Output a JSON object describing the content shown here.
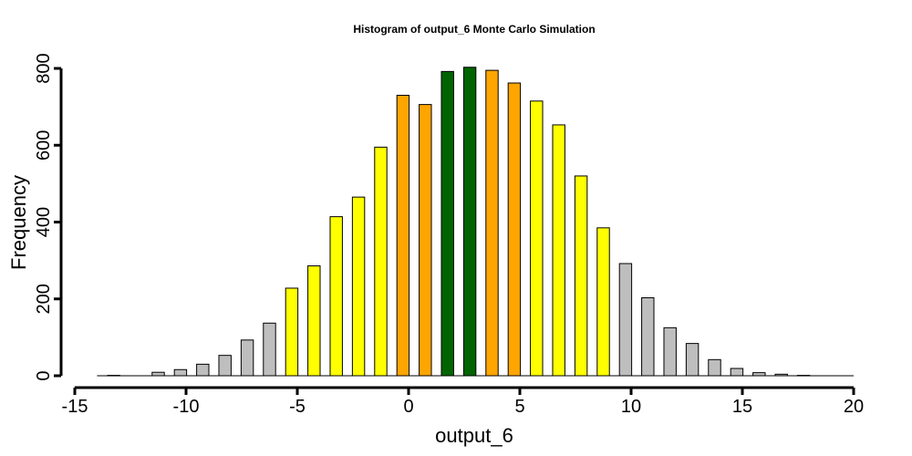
{
  "chart_data": {
    "type": "bar",
    "title": "Histogram of  output_6  Monte Carlo Simulation",
    "xlabel": "output_6",
    "ylabel": "Frequency",
    "xlim": [
      -15,
      20
    ],
    "ylim": [
      0,
      800
    ],
    "x_ticks": [
      -15,
      -10,
      -5,
      0,
      5,
      10,
      15,
      20
    ],
    "y_ticks": [
      0,
      200,
      400,
      600,
      800
    ],
    "bin_width": 1,
    "bins": [
      {
        "x": -13.25,
        "value": 1,
        "color": "#bebebe"
      },
      {
        "x": -11.25,
        "value": 9,
        "color": "#bebebe"
      },
      {
        "x": -10.25,
        "value": 16,
        "color": "#bebebe"
      },
      {
        "x": -9.25,
        "value": 30,
        "color": "#bebebe"
      },
      {
        "x": -8.25,
        "value": 53,
        "color": "#bebebe"
      },
      {
        "x": -7.25,
        "value": 93,
        "color": "#bebebe"
      },
      {
        "x": -6.25,
        "value": 137,
        "color": "#bebebe"
      },
      {
        "x": -5.25,
        "value": 228,
        "color": "#ffff00"
      },
      {
        "x": -4.25,
        "value": 286,
        "color": "#ffff00"
      },
      {
        "x": -3.25,
        "value": 414,
        "color": "#ffff00"
      },
      {
        "x": -2.25,
        "value": 465,
        "color": "#ffff00"
      },
      {
        "x": -1.25,
        "value": 595,
        "color": "#ffff00"
      },
      {
        "x": -0.25,
        "value": 730,
        "color": "#ffa500"
      },
      {
        "x": 0.75,
        "value": 706,
        "color": "#ffa500"
      },
      {
        "x": 1.75,
        "value": 792,
        "color": "#006400"
      },
      {
        "x": 2.75,
        "value": 803,
        "color": "#006400"
      },
      {
        "x": 3.75,
        "value": 795,
        "color": "#ffa500"
      },
      {
        "x": 4.75,
        "value": 762,
        "color": "#ffa500"
      },
      {
        "x": 5.75,
        "value": 715,
        "color": "#ffff00"
      },
      {
        "x": 6.75,
        "value": 653,
        "color": "#ffff00"
      },
      {
        "x": 7.75,
        "value": 520,
        "color": "#ffff00"
      },
      {
        "x": 8.75,
        "value": 385,
        "color": "#ffff00"
      },
      {
        "x": 9.75,
        "value": 292,
        "color": "#bebebe"
      },
      {
        "x": 10.75,
        "value": 203,
        "color": "#bebebe"
      },
      {
        "x": 11.75,
        "value": 125,
        "color": "#bebebe"
      },
      {
        "x": 12.75,
        "value": 84,
        "color": "#bebebe"
      },
      {
        "x": 13.75,
        "value": 42,
        "color": "#bebebe"
      },
      {
        "x": 14.75,
        "value": 19,
        "color": "#bebebe"
      },
      {
        "x": 15.75,
        "value": 8,
        "color": "#bebebe"
      },
      {
        "x": 16.75,
        "value": 4,
        "color": "#bebebe"
      },
      {
        "x": 17.75,
        "value": 1,
        "color": "#bebebe"
      }
    ],
    "baseline_range": [
      -14,
      20
    ],
    "grid": false,
    "legend": "none"
  }
}
